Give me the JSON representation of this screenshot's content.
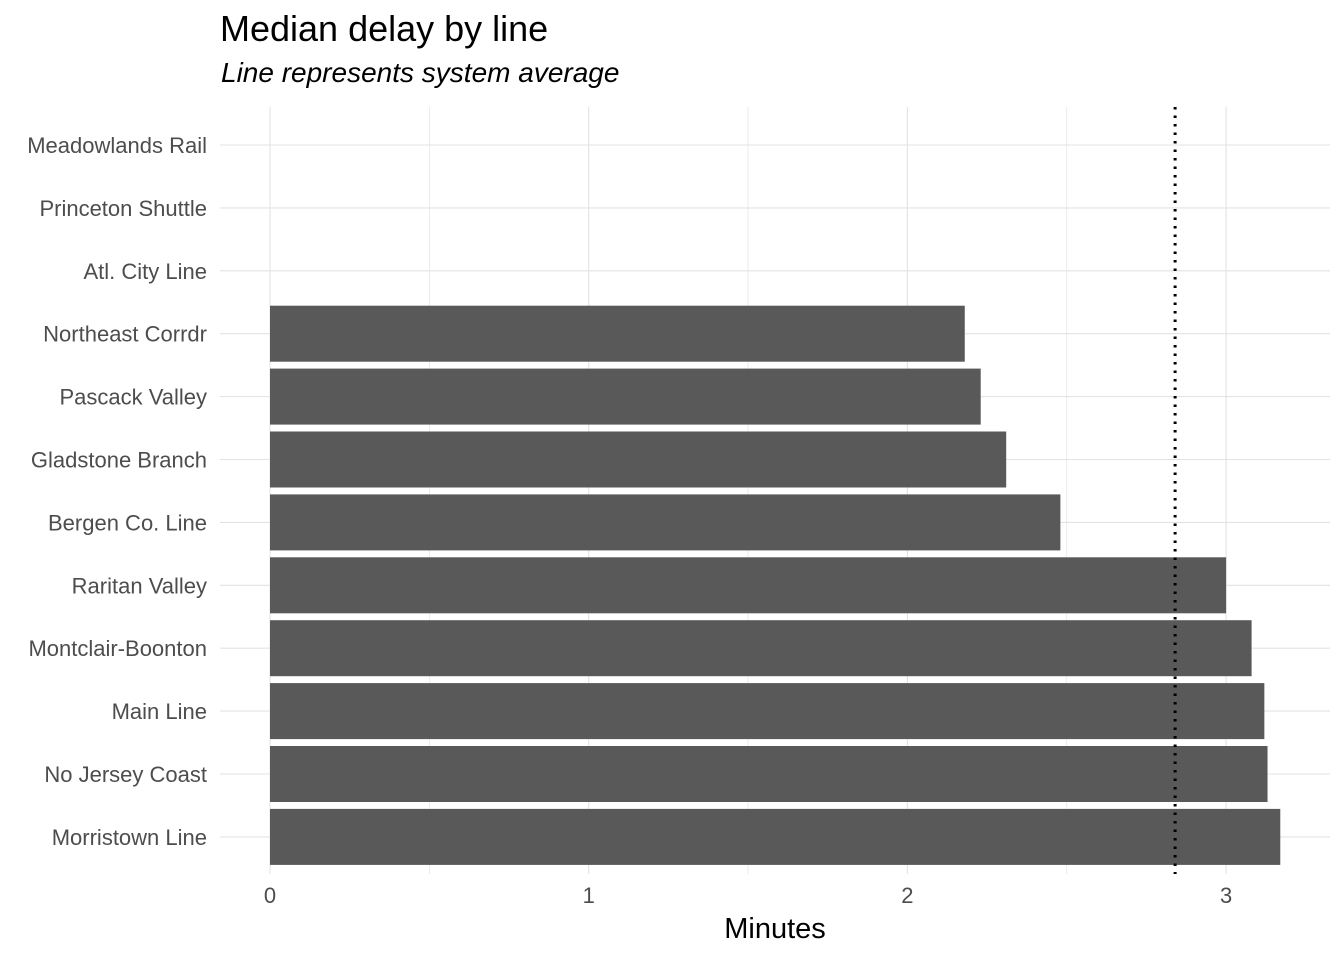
{
  "chart_data": {
    "type": "bar",
    "orientation": "horizontal",
    "title": "Median delay by line",
    "subtitle": "Line represents system average",
    "xlabel": "Minutes",
    "ylabel": "",
    "xlim": [
      -0.16,
      3.3
    ],
    "x_ticks": [
      0,
      1,
      2,
      3
    ],
    "grid": true,
    "categories": [
      "Meadowlands Rail",
      "Princeton Shuttle",
      "Atl. City Line",
      "Northeast Corrdr",
      "Pascack Valley",
      "Gladstone Branch",
      "Bergen Co. Line ",
      "Raritan Valley",
      "Montclair-Boonton",
      "Main Line",
      "No Jersey Coast",
      "Morristown Line"
    ],
    "values": [
      null,
      null,
      null,
      2.18,
      2.23,
      2.31,
      2.48,
      3.0,
      3.08,
      3.12,
      3.13,
      3.17
    ],
    "reference_line": {
      "value": 2.84,
      "style": "dotted",
      "meaning": "system average"
    },
    "colors": {
      "bar": "#595959",
      "grid": "#e3e3e3",
      "reference_line": "#000000",
      "text": "#4d4d4d"
    }
  }
}
